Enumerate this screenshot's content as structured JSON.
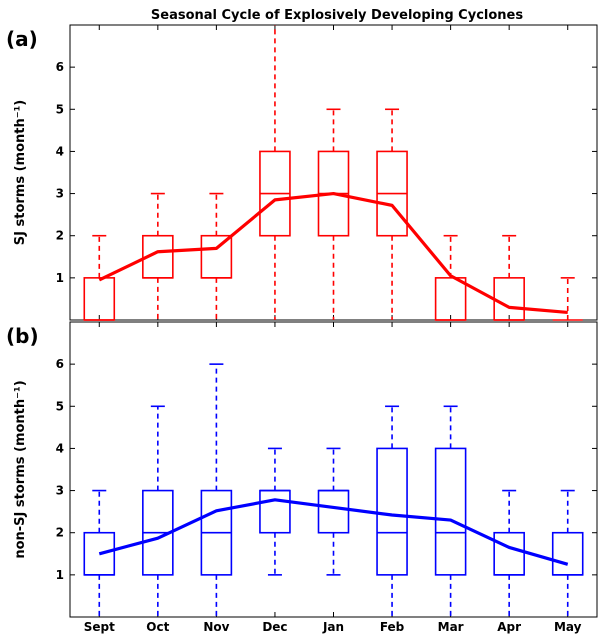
{
  "chart_data": {
    "type": "box",
    "title": "Seasonal Cycle of Explosively Developing Cyclones",
    "categories": [
      "Sept",
      "Oct",
      "Nov",
      "Dec",
      "Jan",
      "Feb",
      "Mar",
      "Apr",
      "May"
    ],
    "panels": [
      {
        "label": "(a)",
        "ylabel": "SJ storms (month⁻¹)",
        "color": "#ff0000",
        "ylim": [
          0,
          7
        ],
        "yticks": [
          "1",
          "2",
          "3",
          "4",
          "5",
          "6"
        ],
        "boxes": [
          {
            "whislo": 0,
            "q1": 0,
            "med": 0,
            "q3": 1,
            "whishi": 2
          },
          {
            "whislo": 0,
            "q1": 1,
            "med": 1,
            "q3": 2,
            "whishi": 3
          },
          {
            "whislo": 0,
            "q1": 1,
            "med": 1,
            "q3": 2,
            "whishi": 3
          },
          {
            "whislo": 0,
            "q1": 2,
            "med": 3,
            "q3": 4,
            "whishi": 7
          },
          {
            "whislo": 0,
            "q1": 2,
            "med": 3,
            "q3": 4,
            "whishi": 5
          },
          {
            "whislo": 0,
            "q1": 2,
            "med": 3,
            "q3": 4,
            "whishi": 5
          },
          {
            "whislo": 0,
            "q1": 0,
            "med": 0,
            "q3": 1,
            "whishi": 2
          },
          {
            "whislo": 0,
            "q1": 0,
            "med": 0,
            "q3": 1,
            "whishi": 2
          },
          {
            "whislo": 0,
            "q1": 0,
            "med": 0,
            "q3": 0,
            "whishi": 1
          }
        ],
        "mean": [
          0.95,
          1.62,
          1.7,
          2.85,
          3.0,
          2.72,
          1.05,
          0.3,
          0.18
        ]
      },
      {
        "label": "(b)",
        "ylabel": "non-SJ storms (month⁻¹)",
        "color": "#0000ff",
        "ylim": [
          0,
          7
        ],
        "yticks": [
          "1",
          "2",
          "3",
          "4",
          "5",
          "6"
        ],
        "boxes": [
          {
            "whislo": 0,
            "q1": 1,
            "med": 1,
            "q3": 2,
            "whishi": 3
          },
          {
            "whislo": 0,
            "q1": 1,
            "med": 2,
            "q3": 3,
            "whishi": 5
          },
          {
            "whislo": 0,
            "q1": 1,
            "med": 2,
            "q3": 3,
            "whishi": 6
          },
          {
            "whislo": 1,
            "q1": 2,
            "med": 3,
            "q3": 3,
            "whishi": 4
          },
          {
            "whislo": 1,
            "q1": 2,
            "med": 3,
            "q3": 3,
            "whishi": 4
          },
          {
            "whislo": 0,
            "q1": 1,
            "med": 2,
            "q3": 4,
            "whishi": 5
          },
          {
            "whislo": 0,
            "q1": 1,
            "med": 2,
            "q3": 4,
            "whishi": 5
          },
          {
            "whislo": 0,
            "q1": 1,
            "med": 1,
            "q3": 2,
            "whishi": 3
          },
          {
            "whislo": 0,
            "q1": 1,
            "med": 1,
            "q3": 2,
            "whishi": 3
          }
        ],
        "mean": [
          1.5,
          1.87,
          2.52,
          2.78,
          2.6,
          2.42,
          2.3,
          1.65,
          1.25
        ]
      }
    ],
    "grid": false,
    "legend": "none"
  }
}
